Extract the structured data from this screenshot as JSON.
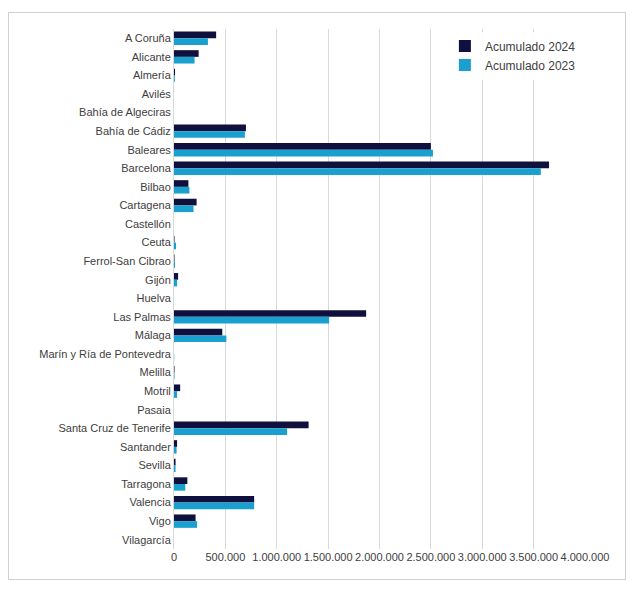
{
  "chart_data": {
    "type": "bar",
    "orientation": "horizontal",
    "categories": [
      "A Coruña",
      "Alicante",
      "Almería",
      "Avilés",
      "Bahía de Algeciras",
      "Bahía de Cádiz",
      "Baleares",
      "Barcelona",
      "Bilbao",
      "Cartagena",
      "Castellón",
      "Ceuta",
      "Ferrol-San Cibrao",
      "Gijón",
      "Huelva",
      "Las Palmas",
      "Málaga",
      "Marín y Ría de Pontevedra",
      "Melilla",
      "Motril",
      "Pasaia",
      "Santa Cruz de Tenerife",
      "Santander",
      "Sevilla",
      "Tarragona",
      "Valencia",
      "Vigo",
      "Vilagarcía"
    ],
    "series": [
      {
        "name": "Acumulado 2024",
        "color": "#10103f",
        "values": [
          410000,
          240000,
          10000,
          0,
          0,
          700000,
          2500000,
          3650000,
          140000,
          220000,
          0,
          5000,
          5000,
          40000,
          0,
          1870000,
          470000,
          0,
          5000,
          60000,
          0,
          1310000,
          30000,
          15000,
          130000,
          780000,
          210000,
          0
        ]
      },
      {
        "name": "Acumulado 2023",
        "color": "#1aa0cf",
        "values": [
          330000,
          200000,
          8000,
          0,
          0,
          690000,
          2520000,
          3570000,
          150000,
          190000,
          0,
          20000,
          10000,
          30000,
          0,
          1510000,
          510000,
          2000,
          5000,
          30000,
          0,
          1100000,
          25000,
          15000,
          110000,
          780000,
          225000,
          0
        ]
      }
    ],
    "xlim": [
      0,
      4000000
    ],
    "xticks": [
      0,
      {
        "value": 500000,
        "label": "500.000"
      },
      {
        "value": 1000000,
        "label": "1.000.000"
      },
      {
        "value": 1500000,
        "label": "1.500.000"
      },
      {
        "value": 2000000,
        "label": "2.000.000"
      },
      {
        "value": 2500000,
        "label": "2.500.000"
      },
      {
        "value": 3000000,
        "label": "3.000.000"
      },
      {
        "value": 3500000,
        "label": "3.500.000"
      },
      {
        "value": 4000000,
        "label": "4.000.000"
      }
    ],
    "grid": true,
    "legend": "top-right"
  }
}
